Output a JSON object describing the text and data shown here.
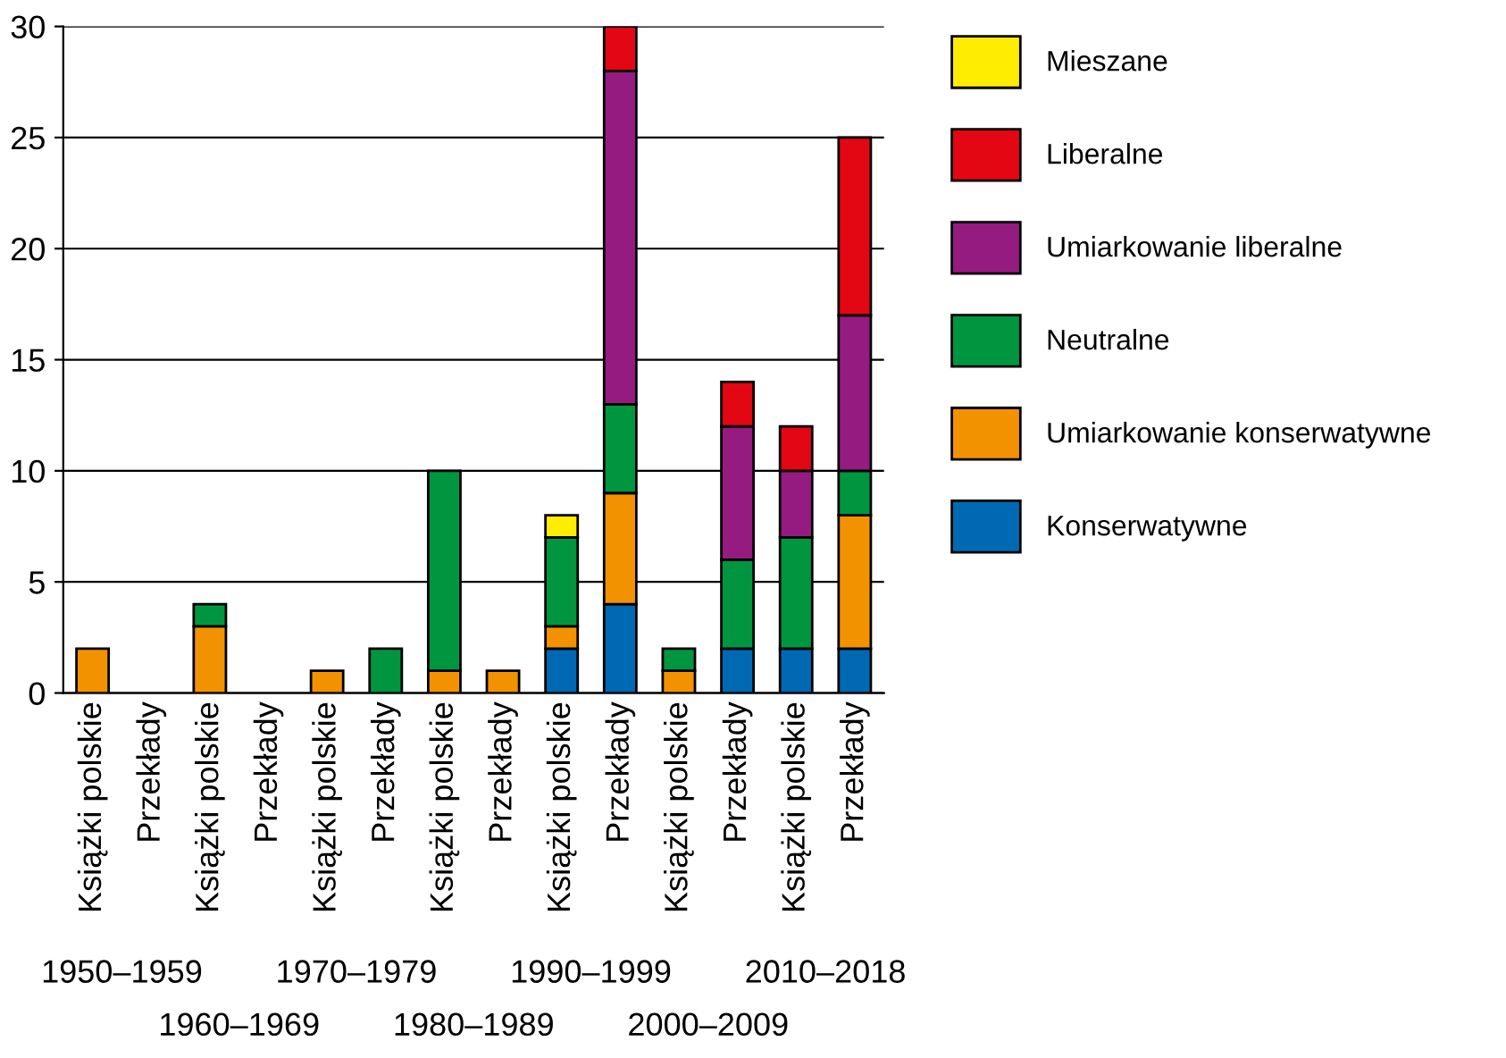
{
  "chart_data": {
    "type": "bar",
    "stacked": true,
    "categories": [
      "Książki polskie",
      "Przekłady",
      "Książki polskie",
      "Przekłady",
      "Książki polskie",
      "Przekłady",
      "Książki polskie",
      "Przekłady",
      "Książki polskie",
      "Przekłady",
      "Książki polskie",
      "Przekłady",
      "Książki polskie",
      "Przekłady"
    ],
    "series": [
      {
        "name": "Konserwatywne",
        "color": "#0069b4",
        "values": [
          0,
          0,
          0,
          0,
          0,
          0,
          0,
          0,
          2,
          4,
          0,
          2,
          2,
          2
        ]
      },
      {
        "name": "Umiarkowanie konserwatywne",
        "color": "#f39200",
        "values": [
          2,
          0,
          3,
          0,
          1,
          0,
          1,
          1,
          1,
          5,
          1,
          0,
          0,
          6
        ]
      },
      {
        "name": "Neutralne",
        "color": "#009640",
        "values": [
          0,
          0,
          1,
          0,
          0,
          2,
          9,
          0,
          4,
          4,
          1,
          4,
          5,
          2
        ]
      },
      {
        "name": "Umiarkowanie liberalne",
        "color": "#951b81",
        "values": [
          0,
          0,
          0,
          0,
          0,
          0,
          0,
          0,
          0,
          15,
          0,
          6,
          3,
          7
        ]
      },
      {
        "name": "Liberalne",
        "color": "#e30613",
        "values": [
          0,
          0,
          0,
          0,
          0,
          0,
          0,
          0,
          0,
          2,
          0,
          2,
          2,
          8
        ]
      },
      {
        "name": "Mieszane",
        "color": "#ffed00",
        "values": [
          0,
          0,
          0,
          0,
          0,
          0,
          0,
          0,
          1,
          0,
          0,
          0,
          0,
          0
        ]
      }
    ],
    "ylim": [
      0,
      30
    ],
    "yticks": [
      0,
      5,
      10,
      15,
      20,
      25,
      30
    ],
    "grid": "y",
    "legend": "right",
    "annotations": [
      "1950–1959",
      "1960–1969",
      "1970–1979",
      "1980–1989",
      "1990–1999",
      "2000–2009",
      "2010–2018"
    ]
  }
}
